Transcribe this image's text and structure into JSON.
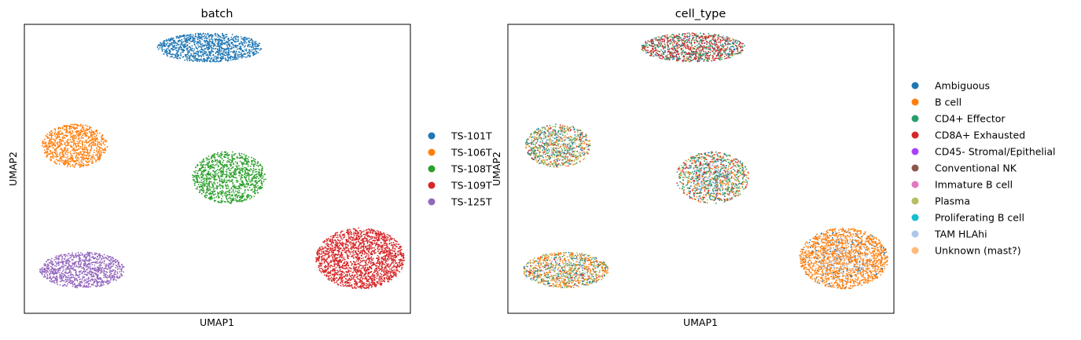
{
  "chart_data": [
    {
      "type": "scatter",
      "title": "batch",
      "xlabel": "UMAP1",
      "ylabel": "UMAP2",
      "grid": false,
      "ticks": false,
      "legend_position": "right",
      "series": [
        {
          "name": "TS-101T",
          "color": "#1f77b4",
          "cluster": {
            "cx": 0.48,
            "cy": 0.92,
            "rx": 0.135,
            "ry": 0.05,
            "n": 1100
          }
        },
        {
          "name": "TS-106T",
          "color": "#ff7f0e",
          "cluster": {
            "cx": 0.13,
            "cy": 0.58,
            "rx": 0.085,
            "ry": 0.075,
            "n": 900
          }
        },
        {
          "name": "TS-108T",
          "color": "#2ca02c",
          "cluster": {
            "cx": 0.53,
            "cy": 0.47,
            "rx": 0.095,
            "ry": 0.09,
            "n": 1100
          }
        },
        {
          "name": "TS-109T",
          "color": "#d62728",
          "cluster": {
            "cx": 0.87,
            "cy": 0.19,
            "rx": 0.115,
            "ry": 0.105,
            "n": 1900
          }
        },
        {
          "name": "TS-125T",
          "color": "#9467bd",
          "cluster": {
            "cx": 0.15,
            "cy": 0.15,
            "rx": 0.11,
            "ry": 0.062,
            "n": 1000
          }
        }
      ]
    },
    {
      "type": "scatter",
      "title": "cell_type",
      "xlabel": "UMAP1",
      "ylabel": "UMAP2",
      "grid": false,
      "ticks": false,
      "legend_position": "right",
      "series": [
        {
          "name": "Ambiguous",
          "color": "#1f77b4"
        },
        {
          "name": "B cell",
          "color": "#ff7f0e"
        },
        {
          "name": "CD4+ Effector",
          "color": "#279e68"
        },
        {
          "name": "CD8A+ Exhausted",
          "color": "#d62728"
        },
        {
          "name": "CD45- Stromal/Epithelial",
          "color": "#aa40fc"
        },
        {
          "name": "Conventional NK",
          "color": "#8c564b"
        },
        {
          "name": "Immature B cell",
          "color": "#e377c2"
        },
        {
          "name": "Plasma",
          "color": "#b5bd61"
        },
        {
          "name": "Proliferating B cell",
          "color": "#17becf"
        },
        {
          "name": "TAM HLAhi",
          "color": "#aec7e8"
        },
        {
          "name": "Unknown (mast?)",
          "color": "#ffbb78"
        }
      ],
      "cluster_composition": [
        {
          "cx": 0.48,
          "cy": 0.92,
          "rx": 0.135,
          "ry": 0.05,
          "n": 1100,
          "mix": {
            "CD8A+ Exhausted": 0.45,
            "CD4+ Effector": 0.25,
            "Conventional NK": 0.12,
            "Ambiguous": 0.08,
            "Plasma": 0.1
          }
        },
        {
          "cx": 0.13,
          "cy": 0.58,
          "rx": 0.085,
          "ry": 0.075,
          "n": 900,
          "mix": {
            "Plasma": 0.3,
            "CD4+ Effector": 0.22,
            "B cell": 0.15,
            "Conventional NK": 0.1,
            "CD8A+ Exhausted": 0.08,
            "TAM HLAhi": 0.08,
            "Ambiguous": 0.07
          }
        },
        {
          "cx": 0.53,
          "cy": 0.47,
          "rx": 0.095,
          "ry": 0.09,
          "n": 1100,
          "mix": {
            "CD4+ Effector": 0.3,
            "B cell": 0.22,
            "CD8A+ Exhausted": 0.18,
            "TAM HLAhi": 0.12,
            "Ambiguous": 0.08,
            "Plasma": 0.1
          }
        },
        {
          "cx": 0.87,
          "cy": 0.19,
          "rx": 0.115,
          "ry": 0.105,
          "n": 1900,
          "mix": {
            "B cell": 0.78,
            "TAM HLAhi": 0.1,
            "Ambiguous": 0.06,
            "Unknown (mast?)": 0.06
          }
        },
        {
          "cx": 0.15,
          "cy": 0.15,
          "rx": 0.11,
          "ry": 0.062,
          "n": 1000,
          "mix": {
            "B cell": 0.35,
            "Plasma": 0.25,
            "CD4+ Effector": 0.15,
            "Ambiguous": 0.1,
            "CD8A+ Exhausted": 0.08,
            "TAM HLAhi": 0.07
          }
        }
      ]
    }
  ]
}
